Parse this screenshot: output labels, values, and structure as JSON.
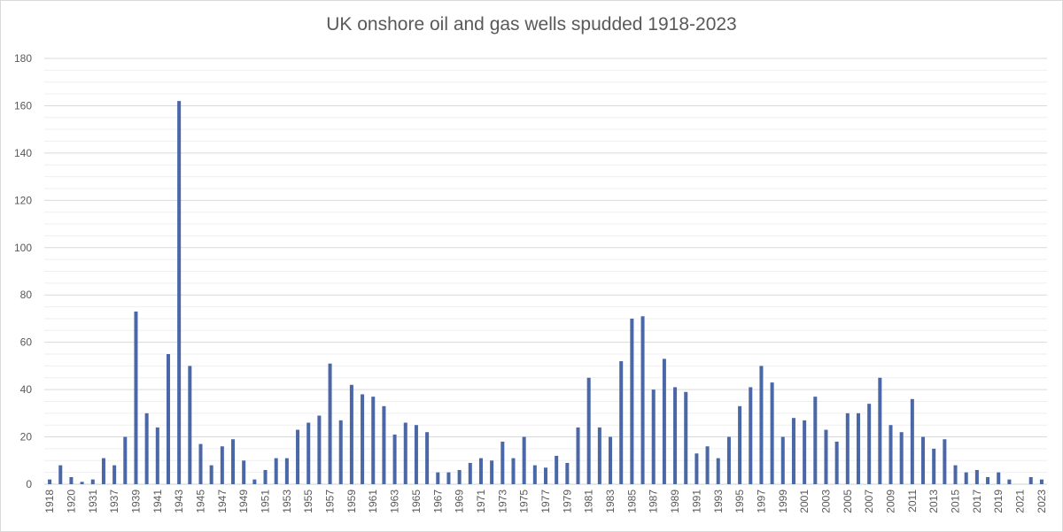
{
  "chart_data": {
    "type": "bar",
    "title": "UK onshore oil and gas wells spudded 1918-2023",
    "xlabel": "",
    "ylabel": "",
    "ylim": [
      0,
      180
    ],
    "yticks": [
      0,
      20,
      40,
      60,
      80,
      100,
      120,
      140,
      160,
      180
    ],
    "grid": "horizontal",
    "legend": "none",
    "bar_color": "#4a67a8",
    "categories": [
      "1918",
      "1919",
      "1920",
      "1921",
      "1931",
      "1936",
      "1937",
      "1938",
      "1939",
      "1940",
      "1941",
      "1942",
      "1943",
      "1944",
      "1945",
      "1946",
      "1947",
      "1948",
      "1949",
      "1950",
      "1951",
      "1952",
      "1953",
      "1954",
      "1955",
      "1956",
      "1957",
      "1958",
      "1959",
      "1960",
      "1961",
      "1962",
      "1963",
      "1964",
      "1965",
      "1966",
      "1967",
      "1968",
      "1969",
      "1970",
      "1971",
      "1972",
      "1973",
      "1974",
      "1975",
      "1976",
      "1977",
      "1978",
      "1979",
      "1980",
      "1981",
      "1982",
      "1983",
      "1984",
      "1985",
      "1986",
      "1987",
      "1988",
      "1989",
      "1990",
      "1991",
      "1992",
      "1993",
      "1994",
      "1995",
      "1996",
      "1997",
      "1998",
      "1999",
      "2000",
      "2001",
      "2002",
      "2003",
      "2004",
      "2005",
      "2006",
      "2007",
      "2008",
      "2009",
      "2010",
      "2011",
      "2012",
      "2013",
      "2014",
      "2015",
      "2016",
      "2017",
      "2018",
      "2019",
      "2020",
      "2021",
      "2022",
      "2023"
    ],
    "tick_labels": [
      "1918",
      "",
      "1920",
      "",
      "1931",
      "",
      "1937",
      "",
      "1939",
      "",
      "1941",
      "",
      "1943",
      "",
      "1945",
      "",
      "1947",
      "",
      "1949",
      "",
      "1951",
      "",
      "1953",
      "",
      "1955",
      "",
      "1957",
      "",
      "1959",
      "",
      "1961",
      "",
      "1963",
      "",
      "1965",
      "",
      "1967",
      "",
      "1969",
      "",
      "1971",
      "",
      "1973",
      "",
      "1975",
      "",
      "1977",
      "",
      "1979",
      "",
      "1981",
      "",
      "1983",
      "",
      "1985",
      "",
      "1987",
      "",
      "1989",
      "",
      "1991",
      "",
      "1993",
      "",
      "1995",
      "",
      "1997",
      "",
      "1999",
      "",
      "2001",
      "",
      "2003",
      "",
      "2005",
      "",
      "2007",
      "",
      "2009",
      "",
      "2011",
      "",
      "2013",
      "",
      "2015",
      "",
      "2017",
      "",
      "2019",
      "",
      "2021",
      "",
      "2023"
    ],
    "values": [
      2,
      8,
      3,
      1,
      2,
      11,
      8,
      20,
      73,
      30,
      24,
      55,
      162,
      50,
      17,
      8,
      16,
      19,
      10,
      2,
      6,
      11,
      11,
      23,
      26,
      29,
      51,
      27,
      42,
      38,
      37,
      33,
      21,
      26,
      25,
      22,
      5,
      5,
      6,
      9,
      11,
      10,
      18,
      11,
      20,
      8,
      7,
      12,
      9,
      24,
      45,
      24,
      20,
      52,
      70,
      71,
      40,
      53,
      41,
      39,
      13,
      16,
      11,
      20,
      33,
      41,
      50,
      43,
      20,
      28,
      27,
      37,
      23,
      18,
      30,
      30,
      34,
      45,
      25,
      22,
      36,
      20,
      15,
      19,
      8,
      5,
      6,
      3,
      5,
      2,
      0,
      3,
      2
    ]
  }
}
